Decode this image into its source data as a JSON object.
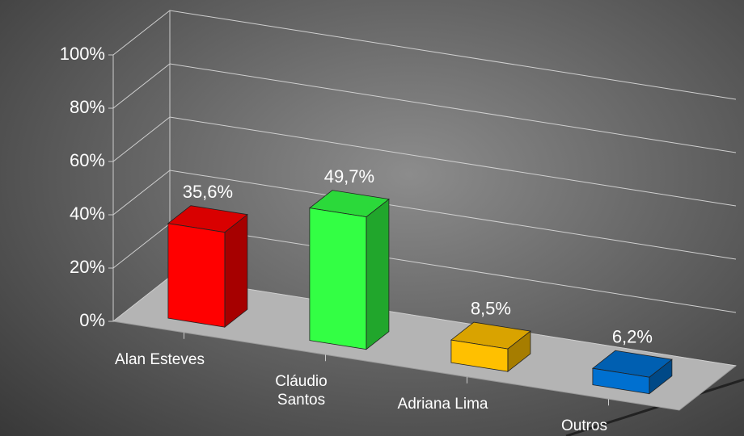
{
  "chart_data": {
    "type": "bar3d",
    "categories": [
      "Alan Esteves",
      "Cláudio Santos",
      "Adriana Lima",
      "Outros"
    ],
    "values": [
      35.6,
      49.7,
      8.5,
      6.2
    ],
    "value_labels": [
      "35,6%",
      "49,7%",
      "8,5%",
      "6,2%"
    ],
    "colors": [
      "#ff0000",
      "#33ff44",
      "#ffc000",
      "#0070d0"
    ],
    "ylim": [
      0,
      100
    ],
    "yticks": [
      {
        "value": 0,
        "label": "0%"
      },
      {
        "value": 20,
        "label": "20%"
      },
      {
        "value": 40,
        "label": "40%"
      },
      {
        "value": 60,
        "label": "60%"
      },
      {
        "value": 80,
        "label": "80%"
      },
      {
        "value": 100,
        "label": "100%"
      }
    ],
    "grid": true
  }
}
